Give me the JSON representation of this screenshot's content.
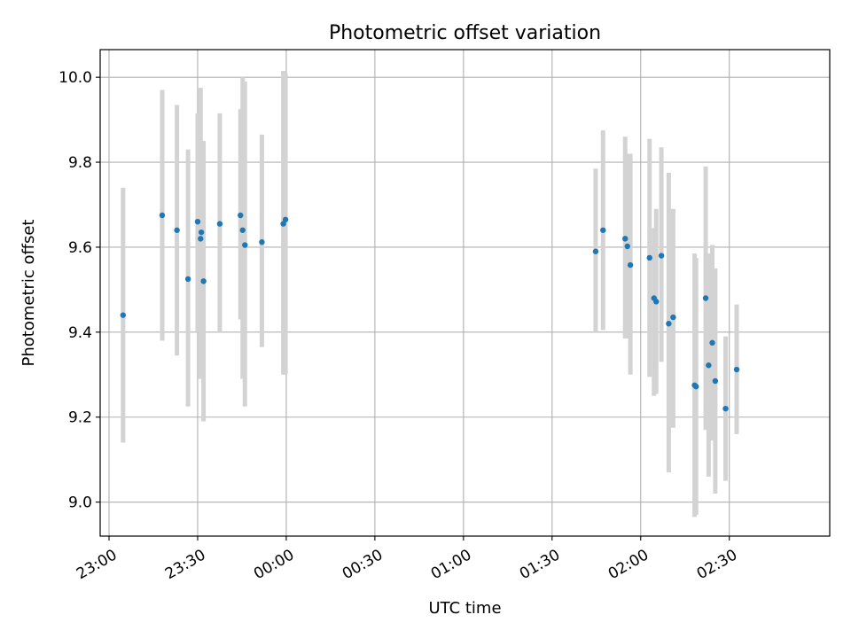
{
  "colors": {
    "point": "#1f77b4",
    "errorbar": "#d3d3d3",
    "grid": "#b0b0b0",
    "axes": "#000000",
    "background": "#ffffff"
  },
  "chart_data": {
    "type": "scatter",
    "title": "Photometric offset variation",
    "xlabel": "UTC time",
    "ylabel": "Photometric offset",
    "x_unit": "UTC time (HH:MM)",
    "xlim": [
      "22:57",
      "03:04"
    ],
    "ylim": [
      8.92,
      10.065
    ],
    "x_ticks": [
      "23:00",
      "23:30",
      "00:00",
      "00:30",
      "01:00",
      "01:30",
      "02:00",
      "02:30"
    ],
    "y_ticks": [
      "9.0",
      "9.2",
      "9.4",
      "9.6",
      "9.8",
      "10.0"
    ],
    "grid": true,
    "legend": "none",
    "series": [
      {
        "marker": "point with vertical error bar",
        "points": [
          {
            "t": "23:04:45",
            "y": 9.44,
            "lo": 9.14,
            "hi": 9.74
          },
          {
            "t": "23:18:00",
            "y": 9.675,
            "lo": 9.38,
            "hi": 9.97
          },
          {
            "t": "23:23:00",
            "y": 9.64,
            "lo": 9.345,
            "hi": 9.935
          },
          {
            "t": "23:26:45",
            "y": 9.525,
            "lo": 9.225,
            "hi": 9.83
          },
          {
            "t": "23:30:00",
            "y": 9.66,
            "lo": 9.4,
            "hi": 9.915
          },
          {
            "t": "23:31:00",
            "y": 9.62,
            "lo": 9.29,
            "hi": 9.975
          },
          {
            "t": "23:31:15",
            "y": 9.635,
            "lo": 9.4,
            "hi": 9.85
          },
          {
            "t": "23:32:00",
            "y": 9.52,
            "lo": 9.19,
            "hi": 9.85
          },
          {
            "t": "23:37:30",
            "y": 9.655,
            "lo": 9.4,
            "hi": 9.915
          },
          {
            "t": "23:44:30",
            "y": 9.675,
            "lo": 9.43,
            "hi": 9.925
          },
          {
            "t": "23:45:15",
            "y": 9.64,
            "lo": 9.29,
            "hi": 10.0
          },
          {
            "t": "23:46:00",
            "y": 9.605,
            "lo": 9.225,
            "hi": 9.99
          },
          {
            "t": "23:51:45",
            "y": 9.612,
            "lo": 9.365,
            "hi": 9.865
          },
          {
            "t": "23:59:00",
            "y": 9.655,
            "lo": 9.3,
            "hi": 10.015
          },
          {
            "t": "23:59:45",
            "y": 9.665,
            "lo": 9.3,
            "hi": 10.01
          },
          {
            "t": "01:44:45",
            "y": 9.59,
            "lo": 9.4,
            "hi": 9.785
          },
          {
            "t": "01:47:15",
            "y": 9.64,
            "lo": 9.405,
            "hi": 9.875
          },
          {
            "t": "01:54:45",
            "y": 9.62,
            "lo": 9.385,
            "hi": 9.86
          },
          {
            "t": "01:55:30",
            "y": 9.602,
            "lo": 9.385,
            "hi": 9.82
          },
          {
            "t": "01:56:30",
            "y": 9.558,
            "lo": 9.3,
            "hi": 9.82
          },
          {
            "t": "02:03:00",
            "y": 9.575,
            "lo": 9.295,
            "hi": 9.855
          },
          {
            "t": "02:04:30",
            "y": 9.48,
            "lo": 9.25,
            "hi": 9.645
          },
          {
            "t": "02:05:15",
            "y": 9.472,
            "lo": 9.255,
            "hi": 9.69
          },
          {
            "t": "02:07:00",
            "y": 9.58,
            "lo": 9.33,
            "hi": 9.835
          },
          {
            "t": "02:09:30",
            "y": 9.42,
            "lo": 9.07,
            "hi": 9.775
          },
          {
            "t": "02:11:00",
            "y": 9.435,
            "lo": 9.175,
            "hi": 9.69
          },
          {
            "t": "02:18:15",
            "y": 9.275,
            "lo": 8.965,
            "hi": 9.585
          },
          {
            "t": "02:18:45",
            "y": 9.272,
            "lo": 8.97,
            "hi": 9.575
          },
          {
            "t": "02:22:00",
            "y": 9.48,
            "lo": 9.17,
            "hi": 9.79
          },
          {
            "t": "02:23:00",
            "y": 9.322,
            "lo": 9.06,
            "hi": 9.585
          },
          {
            "t": "02:24:15",
            "y": 9.375,
            "lo": 9.145,
            "hi": 9.605
          },
          {
            "t": "02:25:15",
            "y": 9.285,
            "lo": 9.02,
            "hi": 9.55
          },
          {
            "t": "02:28:45",
            "y": 9.22,
            "lo": 9.05,
            "hi": 9.39
          },
          {
            "t": "02:32:30",
            "y": 9.312,
            "lo": 9.16,
            "hi": 9.465
          }
        ]
      }
    ]
  }
}
